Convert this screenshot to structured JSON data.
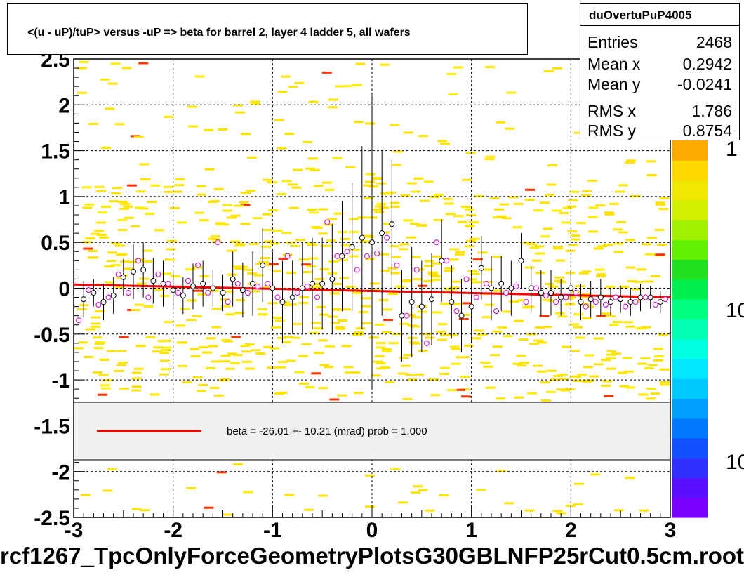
{
  "chart_data": {
    "type": "scatter",
    "title": "<(u - uP)/tuP> versus  -uP => beta for barrel 2, layer 4 ladder 5, all wafers",
    "histogram_name": "duOvertuPuP4005",
    "xlim": [
      -3,
      3
    ],
    "ylim": [
      -2.5,
      2.5
    ],
    "x_ticks": [
      "-3",
      "-2",
      "-1",
      "0",
      "1",
      "2",
      "3"
    ],
    "y_ticks": [
      "-2.5",
      "-2",
      "-1.5",
      "-1",
      "-0.5",
      "0",
      "0.5",
      "1",
      "1.5",
      "2",
      "2.5"
    ],
    "grid": true,
    "stats": [
      {
        "label": "Entries",
        "value": "2468"
      },
      {
        "label": "Mean x",
        "value": "0.2942"
      },
      {
        "label": "Mean y",
        "value": "-0.0241"
      },
      {
        "label": "RMS x",
        "value": "1.786"
      },
      {
        "label": "RMS y",
        "value": "0.8754"
      }
    ],
    "colorbar_labels": [
      "1",
      "10",
      "10"
    ],
    "legend": {
      "text": "beta =  -26.01 +- 10.21 (mrad) prob = 1.000",
      "color": "#ff0000"
    },
    "fit_line": {
      "x": [
        -3,
        3
      ],
      "y": [
        0.04,
        -0.1
      ],
      "color": "#ff0000"
    },
    "series": [
      {
        "marker": "black-circle",
        "color": "#000000",
        "x": [
          -2.9,
          -2.8,
          -2.7,
          -2.6,
          -2.5,
          -2.4,
          -2.3,
          -2.2,
          -2.1,
          -2.0,
          -1.9,
          -1.8,
          -1.7,
          -1.6,
          -1.5,
          -1.4,
          -1.3,
          -1.2,
          -1.1,
          -1.0,
          -0.9,
          -0.8,
          -0.7,
          -0.6,
          -0.5,
          -0.4,
          -0.3,
          -0.2,
          -0.1,
          0.0,
          0.1,
          0.2,
          0.3,
          0.4,
          0.5,
          0.6,
          0.7,
          0.8,
          0.9,
          1.0,
          1.1,
          1.2,
          1.3,
          1.4,
          1.5,
          1.6,
          1.7,
          1.8,
          1.9,
          2.0,
          2.1,
          2.2,
          2.3,
          2.4,
          2.5,
          2.6,
          2.7,
          2.8,
          2.9
        ],
        "y": [
          -0.12,
          -0.05,
          -0.15,
          -0.08,
          0.12,
          0.18,
          0.2,
          0.08,
          0.05,
          -0.02,
          -0.08,
          0.02,
          0.05,
          0.0,
          -0.05,
          0.1,
          -0.02,
          0.05,
          0.25,
          0.0,
          -0.15,
          -0.1,
          0.0,
          0.05,
          0.05,
          0.1,
          0.35,
          0.45,
          0.55,
          0.5,
          0.6,
          0.7,
          -0.3,
          -0.15,
          -0.2,
          -0.12,
          0.3,
          -0.15,
          -0.3,
          -0.2,
          0.22,
          0.0,
          0.05,
          0.0,
          0.3,
          0.0,
          -0.05,
          -0.05,
          -0.1,
          0.0,
          -0.15,
          -0.12,
          -0.1,
          -0.15,
          -0.12,
          -0.15,
          -0.1,
          -0.1,
          -0.15
        ],
        "yerr": [
          0.2,
          0.15,
          0.2,
          0.2,
          0.2,
          0.3,
          0.3,
          0.25,
          0.25,
          0.2,
          0.2,
          0.25,
          0.25,
          0.2,
          0.2,
          0.3,
          0.3,
          0.35,
          0.4,
          0.4,
          0.45,
          0.4,
          0.5,
          0.5,
          0.5,
          0.6,
          0.6,
          0.7,
          1.0,
          1.6,
          0.9,
          0.7,
          0.5,
          0.6,
          0.5,
          0.5,
          0.45,
          0.4,
          0.4,
          0.4,
          0.35,
          0.35,
          0.3,
          0.3,
          0.3,
          0.25,
          0.25,
          0.25,
          0.2,
          0.2,
          0.2,
          0.2,
          0.2,
          0.15,
          0.15,
          0.15,
          0.15,
          0.12,
          0.12
        ]
      },
      {
        "marker": "magenta-circle",
        "color": "#cc00cc",
        "x": [
          -2.95,
          -2.85,
          -2.75,
          -2.65,
          -2.55,
          -2.45,
          -2.35,
          -2.25,
          -2.15,
          -2.05,
          -1.95,
          -1.85,
          -1.75,
          -1.65,
          -1.55,
          -1.45,
          -1.35,
          -1.25,
          -1.15,
          -1.05,
          -0.95,
          -0.85,
          -0.75,
          -0.65,
          -0.55,
          -0.45,
          -0.35,
          -0.25,
          -0.15,
          -0.05,
          0.05,
          0.15,
          0.25,
          0.35,
          0.45,
          0.55,
          0.65,
          0.75,
          0.85,
          0.95,
          1.05,
          1.15,
          1.25,
          1.35,
          1.45,
          1.55,
          1.65,
          1.75,
          1.85,
          1.95,
          2.05,
          2.15,
          2.25,
          2.35,
          2.45,
          2.55,
          2.65,
          2.75,
          2.85,
          2.95
        ],
        "y": [
          -0.35,
          -0.02,
          -0.18,
          -0.1,
          0.15,
          -0.05,
          0.3,
          -0.1,
          0.15,
          0.05,
          -0.05,
          0.08,
          0.25,
          -0.05,
          0.5,
          -0.15,
          0.05,
          -0.05,
          0.02,
          0.05,
          -0.1,
          0.35,
          -0.05,
          0.02,
          -0.1,
          0.72,
          0.35,
          0.4,
          0.2,
          0.35,
          0.38,
          0.55,
          0.25,
          -0.3,
          0.2,
          -0.6,
          0.5,
          0.3,
          -0.25,
          0.1,
          -0.1,
          0.05,
          -0.25,
          -0.05,
          0.02,
          -0.15,
          0.0,
          -0.08,
          -0.15,
          -0.1,
          -0.05,
          -0.2,
          -0.15,
          -0.18,
          -0.1,
          -0.2,
          -0.15,
          -0.1,
          -0.18,
          -0.12
        ]
      }
    ]
  }
}
